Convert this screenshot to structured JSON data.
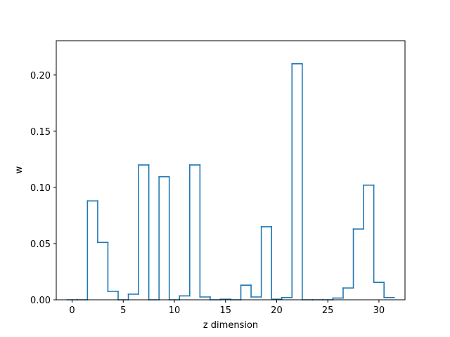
{
  "chart_data": {
    "type": "step",
    "title": "",
    "xlabel": "z dimension",
    "ylabel": "w",
    "xlim": [
      -1.55,
      32.55
    ],
    "ylim": [
      0.0,
      0.2305
    ],
    "xticks": [
      0,
      5,
      10,
      15,
      20,
      25,
      30
    ],
    "yticks": [
      0.0,
      0.05,
      0.1,
      0.15,
      0.2
    ],
    "ytick_labels": [
      "0.00",
      "0.05",
      "0.10",
      "0.15",
      "0.20"
    ],
    "x": [
      0,
      1,
      2,
      3,
      4,
      5,
      6,
      7,
      8,
      9,
      10,
      11,
      12,
      13,
      14,
      15,
      16,
      17,
      18,
      19,
      20,
      21,
      22,
      23,
      24,
      25,
      26,
      27,
      28,
      29,
      30,
      31
    ],
    "values": [
      0.0,
      0.0,
      0.088,
      0.051,
      0.0075,
      0.0,
      0.005,
      0.12,
      0.0,
      0.1095,
      0.0,
      0.0035,
      0.12,
      0.0025,
      0.0,
      0.0005,
      0.0,
      0.013,
      0.0025,
      0.065,
      0.0005,
      0.002,
      0.21,
      0.0,
      0.0,
      0.0,
      0.0015,
      0.0105,
      0.063,
      0.102,
      0.0155,
      0.002
    ],
    "line_color": "#1f77b4"
  }
}
